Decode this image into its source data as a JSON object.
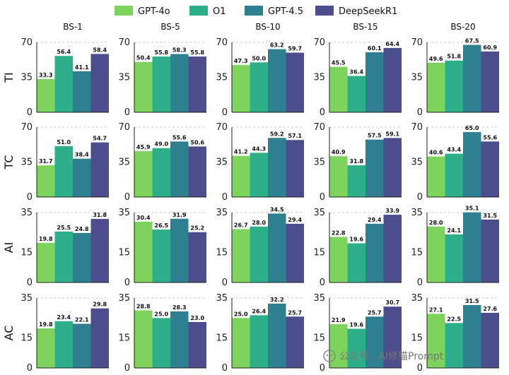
{
  "chart_data": {
    "type": "bar",
    "layout": "grid",
    "legend": {
      "position": "top-center",
      "entries": [
        {
          "name": "GPT-4o",
          "color": "#7ed35c"
        },
        {
          "name": "O1",
          "color": "#2db08a"
        },
        {
          "name": "GPT-4.5",
          "color": "#2e7f8f"
        },
        {
          "name": "DeepSeekR1",
          "color": "#4b4d8c"
        }
      ]
    },
    "columns": [
      "BS-1",
      "BS-5",
      "BS-10",
      "BS-15",
      "BS-20"
    ],
    "rows": [
      {
        "label": "TI",
        "ylim": [
          0,
          70
        ],
        "yticks": [
          0,
          35,
          70
        ],
        "values": [
          [
            33.3,
            56.4,
            41.1,
            58.4
          ],
          [
            50.4,
            55.8,
            58.3,
            55.8
          ],
          [
            47.3,
            50.0,
            63.2,
            59.7
          ],
          [
            45.5,
            36.4,
            60.1,
            64.4
          ],
          [
            49.6,
            51.8,
            67.5,
            60.9
          ]
        ],
        "labels": [
          [
            "33.3",
            "56.4",
            "41.1",
            "58.4"
          ],
          [
            "50.4",
            "55.8",
            "58.3",
            "55.8"
          ],
          [
            "47.3",
            "50.0",
            "63.2",
            "59.7"
          ],
          [
            "45.5",
            "36.4",
            "60.1",
            "64.4"
          ],
          [
            "49.6",
            "51.8",
            "67.5",
            "60.9"
          ]
        ]
      },
      {
        "label": "TC",
        "ylim": [
          0,
          70
        ],
        "yticks": [
          0,
          35,
          70
        ],
        "values": [
          [
            31.7,
            51.0,
            38.4,
            54.7
          ],
          [
            45.9,
            49.0,
            55.6,
            50.6
          ],
          [
            41.2,
            44.3,
            59.2,
            57.1
          ],
          [
            40.9,
            31.8,
            57.5,
            59.1
          ],
          [
            40.6,
            43.4,
            65.0,
            55.6
          ]
        ],
        "labels": [
          [
            "31.7",
            "51.0",
            "38.4",
            "54.7"
          ],
          [
            "45.9",
            "49.0",
            "55.6",
            "50.6"
          ],
          [
            "41.2",
            "44.3",
            "59.2",
            "57.1"
          ],
          [
            "40.9",
            "31.8",
            "57.5",
            "59.1"
          ],
          [
            "40.6",
            "43.4",
            "65.0",
            "55.6"
          ]
        ]
      },
      {
        "label": "AI",
        "ylim": [
          0,
          35
        ],
        "yticks": [
          0,
          15,
          35
        ],
        "values": [
          [
            19.8,
            25.5,
            24.8,
            31.8
          ],
          [
            30.4,
            26.5,
            31.9,
            25.2
          ],
          [
            26.7,
            28.0,
            34.5,
            29.4
          ],
          [
            22.8,
            19.6,
            29.4,
            33.9
          ],
          [
            28.0,
            24.1,
            35.1,
            31.5
          ]
        ],
        "labels": [
          [
            "19.8",
            "25.5",
            "24.8",
            "31.8"
          ],
          [
            "30.4",
            "26.5",
            "31.9",
            "25.2"
          ],
          [
            "26.7",
            "28.0",
            "34.5",
            "29.4"
          ],
          [
            "22.8",
            "19.6",
            "29.4",
            "33.9"
          ],
          [
            "28.0",
            "24.1",
            "35.1",
            "31.5"
          ]
        ]
      },
      {
        "label": "AC",
        "ylim": [
          0,
          35
        ],
        "yticks": [
          0,
          15,
          35
        ],
        "values": [
          [
            19.8,
            23.4,
            22.1,
            29.8
          ],
          [
            28.8,
            25.0,
            28.3,
            23.0
          ],
          [
            25.0,
            26.4,
            32.2,
            25.7
          ],
          [
            21.9,
            19.6,
            25.7,
            30.7
          ],
          [
            27.1,
            22.5,
            31.5,
            27.6
          ]
        ],
        "labels": [
          [
            "19.8",
            "23.4",
            "22.1",
            "29.8"
          ],
          [
            "28.8",
            "25.0",
            "28.3",
            "23.0"
          ],
          [
            "25.0",
            "26.4",
            "32.2",
            "25.7"
          ],
          [
            "21.9",
            "19.6",
            "25.7",
            "30.7"
          ],
          [
            "27.1",
            "22.5",
            "31.5",
            "27.6"
          ]
        ]
      }
    ],
    "grid": true
  },
  "watermark": "公众号 · AI修猫Prompt"
}
